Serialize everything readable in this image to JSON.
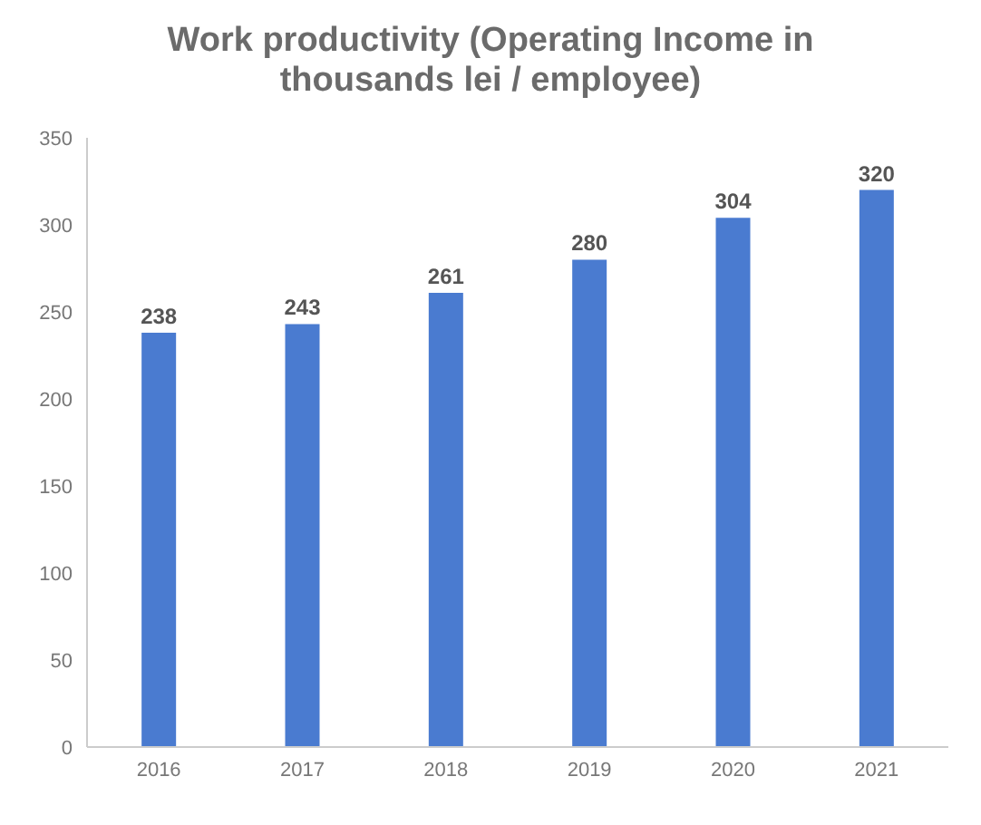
{
  "chart_data": {
    "type": "bar",
    "title": "Work productivity (Operating Income in thousands lei / employee)",
    "categories": [
      "2016",
      "2017",
      "2018",
      "2019",
      "2020",
      "2021"
    ],
    "values": [
      238,
      243,
      261,
      280,
      304,
      320
    ],
    "color": "#4a7bd0",
    "ylim": [
      0,
      350
    ],
    "yticks": [
      0,
      50,
      100,
      150,
      200,
      250,
      300,
      350
    ],
    "data_labels": true,
    "grid": false,
    "legend": false
  }
}
